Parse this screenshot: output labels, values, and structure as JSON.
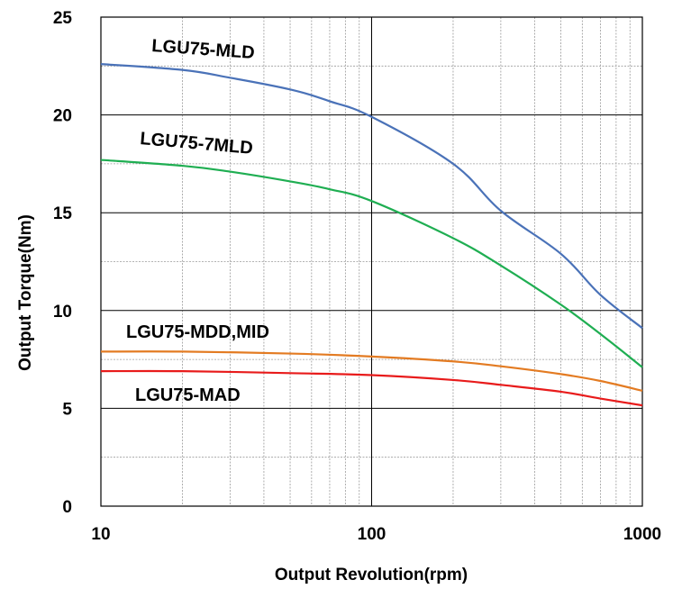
{
  "chart_data": {
    "type": "line",
    "xlabel": "Output Revolution(rpm)",
    "ylabel": "Output Torque(Nm)",
    "xscale": "log",
    "xlim": [
      10,
      1000
    ],
    "ylim": [
      0,
      25
    ],
    "grid": true,
    "x_ticks": [
      "10",
      "100",
      "1000"
    ],
    "y_ticks": [
      "0",
      "5",
      "10",
      "15",
      "20",
      "25"
    ],
    "series": [
      {
        "name": "LGU75-MLD",
        "color": "#4a72b8",
        "x": [
          10,
          20,
          30,
          50,
          70,
          100,
          200,
          300,
          500,
          700,
          1000
        ],
        "y": [
          22.6,
          22.3,
          21.9,
          21.3,
          20.7,
          19.9,
          17.5,
          15.1,
          12.9,
          10.8,
          9.1
        ]
      },
      {
        "name": "LGU75-7MLD",
        "color": "#1fae52",
        "x": [
          10,
          20,
          30,
          50,
          70,
          100,
          200,
          300,
          500,
          700,
          1000
        ],
        "y": [
          17.7,
          17.4,
          17.1,
          16.6,
          16.2,
          15.6,
          13.7,
          12.3,
          10.3,
          8.8,
          7.1
        ]
      },
      {
        "name": "LGU75-MDD,MID",
        "color": "#e37b22",
        "x": [
          10,
          20,
          50,
          100,
          200,
          300,
          500,
          700,
          1000
        ],
        "y": [
          7.9,
          7.9,
          7.8,
          7.65,
          7.4,
          7.15,
          6.75,
          6.4,
          5.9
        ]
      },
      {
        "name": "LGU75-MAD",
        "color": "#e81b1b",
        "x": [
          10,
          20,
          50,
          100,
          200,
          300,
          500,
          700,
          1000
        ],
        "y": [
          6.9,
          6.9,
          6.8,
          6.7,
          6.45,
          6.2,
          5.85,
          5.5,
          5.15
        ]
      }
    ]
  }
}
